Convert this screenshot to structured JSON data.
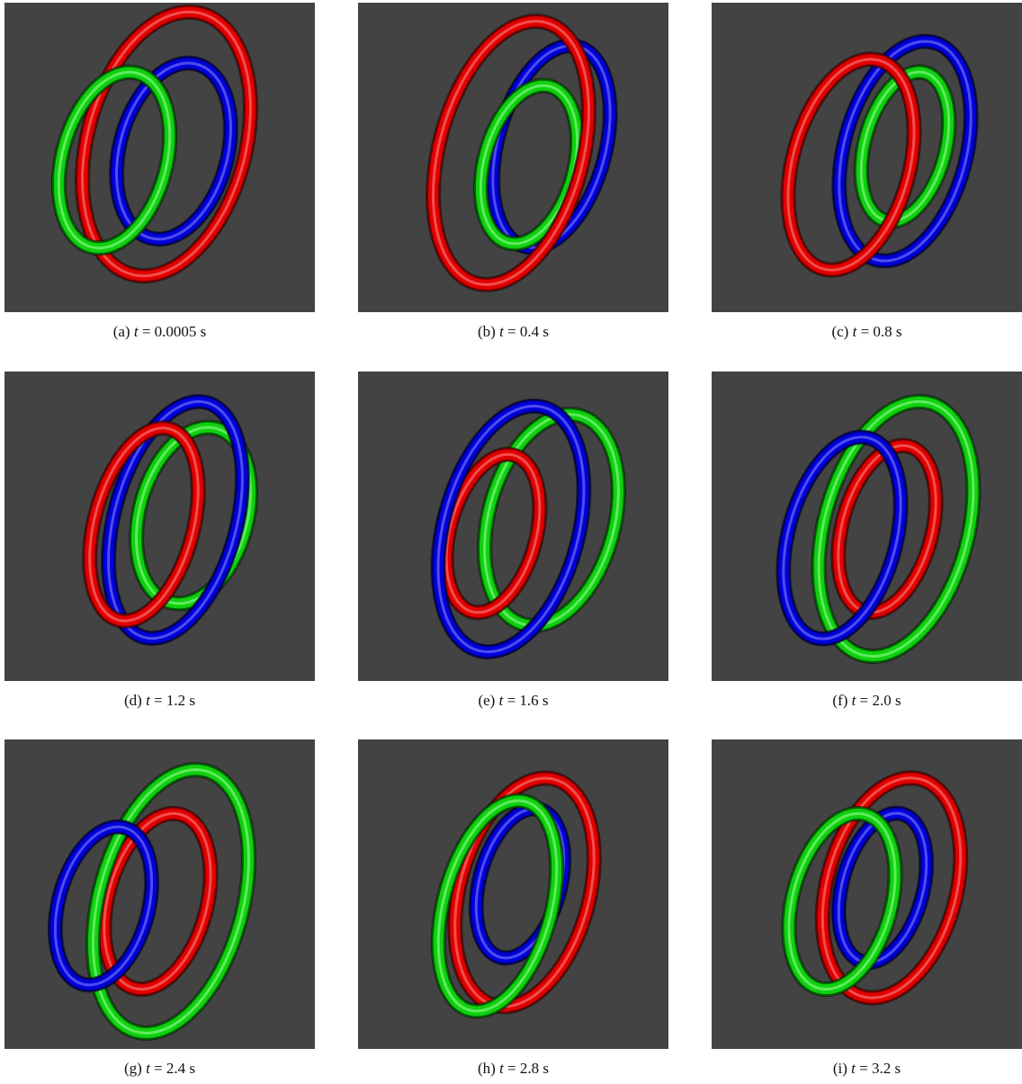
{
  "figure": {
    "panels": [
      {
        "label": "(a)",
        "variable": "t",
        "rest": "= 0.0005 s"
      },
      {
        "label": "(b)",
        "variable": "t",
        "rest": "= 0.4 s"
      },
      {
        "label": "(c)",
        "variable": "t",
        "rest": "= 0.8 s"
      },
      {
        "label": "(d)",
        "variable": "t",
        "rest": "= 1.2 s"
      },
      {
        "label": "(e)",
        "variable": "t",
        "rest": "= 1.6 s"
      },
      {
        "label": "(f)",
        "variable": "t",
        "rest": "= 2.0 s"
      },
      {
        "label": "(g)",
        "variable": "t",
        "rest": "= 2.4 s"
      },
      {
        "label": "(h)",
        "variable": "t",
        "rest": "= 2.8 s"
      },
      {
        "label": "(i)",
        "variable": "t",
        "rest": "= 3.2 s"
      }
    ]
  }
}
